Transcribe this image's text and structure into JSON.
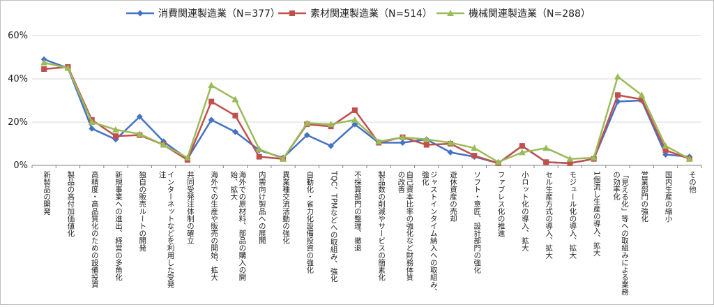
{
  "chart_data": {
    "type": "line",
    "title": "",
    "xlabel": "",
    "ylabel": "",
    "ylim": [
      0,
      60
    ],
    "y_ticks": [
      "0%",
      "20%",
      "40%",
      "60%"
    ],
    "grid": true,
    "legend_position": "top",
    "categories": [
      "新製品の開発",
      "製品の高付加価値化",
      "高精度・高品質化のための設備投資",
      "新規事業への進出、経営の多角化",
      "独自の販売ルートの開発",
      "インターネットなどを利用した受発注",
      "共同受発注体制の確立",
      "海外での生産や販売の開始、拡大",
      "海外での原材料、部品の購入の開始、拡大",
      "内需向け製品への展開",
      "異業種交流活動の強化",
      "自動化・省力化設備投資の強化",
      "TQC、TPMなどへの取組み、強化",
      "不採算部門の整理、撤退",
      "製品数の削減やサービスの簡素化",
      "自己資本比率の強化など財務体質の改善",
      "ジャストインタイム納入への取組み、強化",
      "遊休資産の売却",
      "ソフト・意匠、設計部門の強化",
      "ファブレス化の推進",
      "小ロット化の導入、拡大",
      "セル生産方式の導入、拡大",
      "モジュール化の導入、拡大",
      "1個流し生産の導入、拡大",
      "「見える化」等への取組みによる業務の効率化",
      "営業部門の強化",
      "国内生産の縮小",
      "その他"
    ],
    "category_lines": [
      [
        "新製品の開発"
      ],
      [
        "製品の高付加価値化"
      ],
      [
        "高精度・高品質化のための設備投資"
      ],
      [
        "新規事業への進出、経営の多角化"
      ],
      [
        "独自の販売ルートの開発"
      ],
      [
        "インターネットなどを利用した受発",
        "注"
      ],
      [
        "共同受発注体制の確立"
      ],
      [
        "海外での生産や販売の開始、拡大"
      ],
      [
        "海外での原材料、部品の購入の開",
        "始、拡大"
      ],
      [
        "内需向け製品への展開"
      ],
      [
        "異業種交流活動の強化"
      ],
      [
        "自動化・省力化設備投資の強化"
      ],
      [
        "TQC、TPMなどへの取組み、強化"
      ],
      [
        "不採算部門の整理、撤退"
      ],
      [
        "製品数の削減やサービスの簡素化"
      ],
      [
        "自己資本比率の強化など財務体質",
        "の改善"
      ],
      [
        "ジャストインタイム納入への取組み、",
        "強化"
      ],
      [
        "遊休資産の売却"
      ],
      [
        "ソフト・意匠、設計部門の強化"
      ],
      [
        "ファブレス化の推進"
      ],
      [
        "小ロット化の導入、拡大"
      ],
      [
        "セル生産方式の導入、拡大"
      ],
      [
        "モジュール化の導入、拡大"
      ],
      [
        "1個流し生産の導入、拡大"
      ],
      [
        "「見える化」等への取組みによる業務",
        "の効率化"
      ],
      [
        "営業部門の強化"
      ],
      [
        "国内生産の縮小"
      ],
      [
        "その他"
      ]
    ],
    "series": [
      {
        "name": "消費関連製造業（N=377）",
        "color": "#4472c4",
        "marker": "diamond",
        "values": [
          49,
          45,
          17,
          12,
          22.5,
          11,
          3,
          21,
          15.5,
          7,
          3.5,
          14,
          9,
          19,
          10.5,
          10.5,
          12,
          6,
          4,
          1,
          9,
          1.5,
          1,
          3,
          29.5,
          30,
          5,
          4
        ]
      },
      {
        "name": "素材関連製造業（N=514）",
        "color": "#c0504d",
        "marker": "square",
        "values": [
          44.5,
          45.5,
          21,
          13.5,
          14,
          9.5,
          2.5,
          29.5,
          23,
          4,
          3,
          19,
          18,
          25.5,
          10.5,
          13,
          9.5,
          10,
          4.5,
          1,
          9,
          1.5,
          1,
          3,
          32.5,
          30.5,
          7,
          3
        ]
      },
      {
        "name": "機械関連製造業（N=288）",
        "color": "#9bbb59",
        "marker": "triangle",
        "values": [
          47.5,
          45,
          20,
          16.5,
          14.5,
          9.5,
          3.5,
          37,
          30.5,
          7.5,
          3,
          19.5,
          19,
          21,
          11,
          13,
          12,
          10.5,
          8,
          1.5,
          6,
          8,
          3,
          3.5,
          41,
          32.5,
          9,
          3
        ]
      }
    ]
  }
}
